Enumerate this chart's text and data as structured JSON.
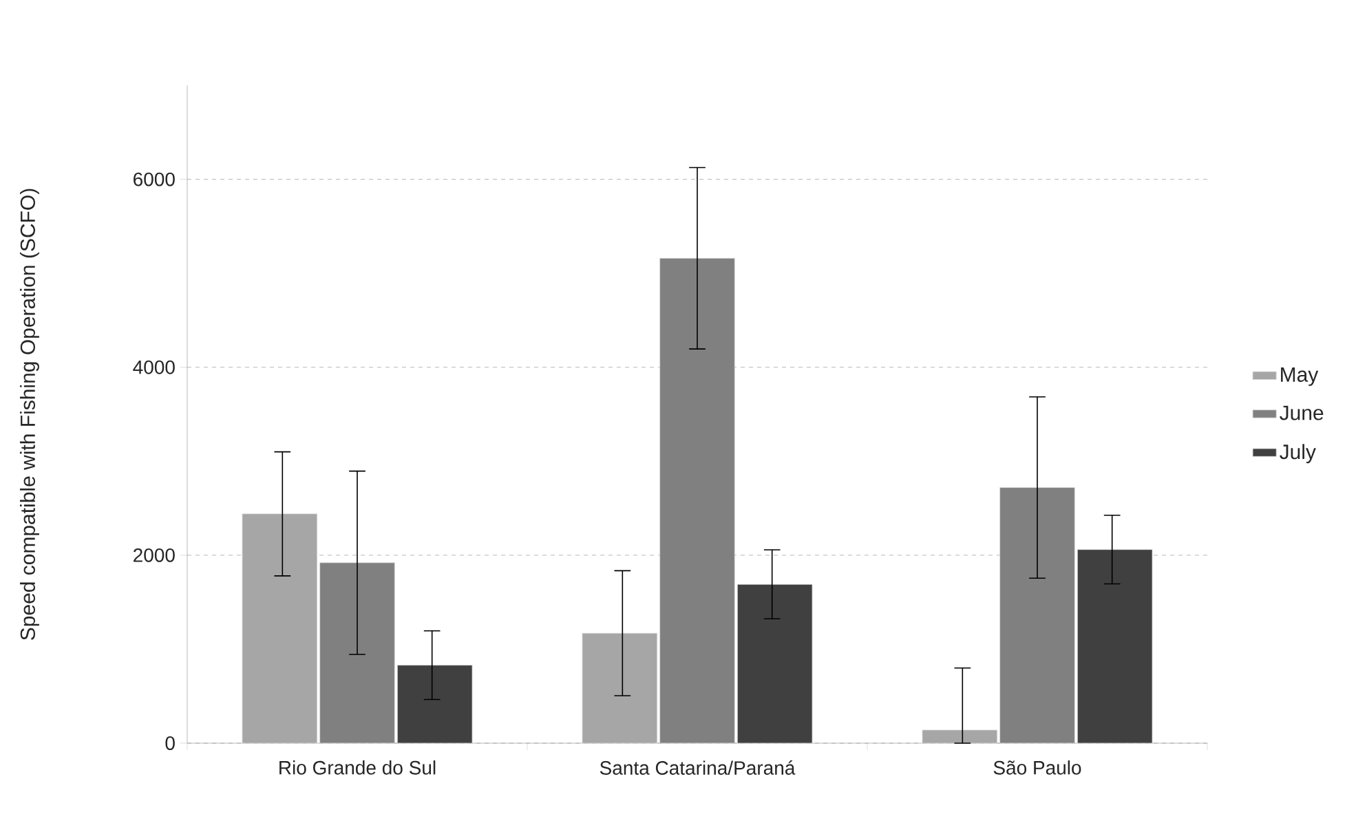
{
  "chart_data": {
    "type": "bar",
    "ylabel": "Speed compatible with Fishing Operation (SCFO)",
    "categories": [
      "Rio Grande do Sul",
      "Santa Catarina/Paraná",
      "São Paulo"
    ],
    "series": [
      {
        "name": "May",
        "color": "#a6a6a6",
        "values": [
          2440,
          1170,
          140
        ],
        "errors": [
          660,
          665,
          [
            0,
            800
          ]
        ]
      },
      {
        "name": "June",
        "color": "#808080",
        "values": [
          1920,
          5160,
          2720
        ],
        "errors": [
          975,
          965,
          965
        ]
      },
      {
        "name": "July",
        "color": "#404040",
        "values": [
          830,
          1690,
          2060
        ],
        "errors": [
          365,
          367,
          365
        ]
      }
    ],
    "ylim": [
      0,
      7000
    ],
    "yticks": [
      0,
      2000,
      4000,
      6000
    ],
    "grid": "y",
    "legend": "right"
  }
}
